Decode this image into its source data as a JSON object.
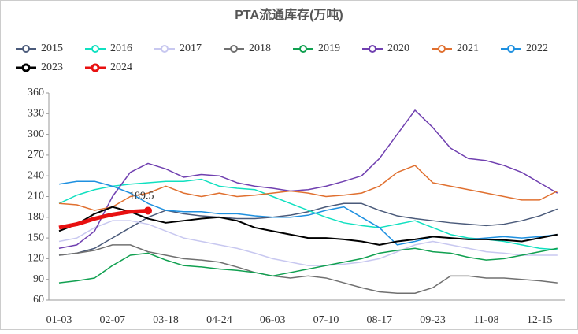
{
  "chart_data": {
    "type": "line",
    "title": "PTA流通库存(万吨)",
    "categories": [
      "01-03",
      null,
      null,
      "02-07",
      null,
      null,
      "03-18",
      null,
      null,
      "04-24",
      null,
      null,
      "06-03",
      null,
      null,
      "07-10",
      null,
      null,
      "08-17",
      null,
      null,
      "09-23",
      null,
      null,
      "11-08",
      null,
      null,
      "12-15",
      null
    ],
    "ylim": [
      60,
      360
    ],
    "yticks": [
      60,
      90,
      120,
      150,
      180,
      210,
      240,
      270,
      300,
      330,
      360
    ],
    "grid": false,
    "series": [
      {
        "name": "2015",
        "color": "#4a5a7a",
        "values": [
          125,
          128,
          135,
          150,
          165,
          180,
          190,
          185,
          182,
          180,
          178,
          178,
          180,
          183,
          188,
          195,
          200,
          200,
          190,
          182,
          178,
          175,
          172,
          170,
          168,
          170,
          175,
          182,
          192
        ]
      },
      {
        "name": "2016",
        "color": "#10e0c0",
        "values": [
          200,
          212,
          220,
          225,
          228,
          230,
          232,
          232,
          235,
          225,
          222,
          220,
          210,
          200,
          190,
          180,
          172,
          168,
          165,
          170,
          175,
          165,
          155,
          150,
          148,
          145,
          140,
          135,
          133
        ]
      },
      {
        "name": "2017",
        "color": "#c8c8f0",
        "values": [
          145,
          150,
          165,
          175,
          175,
          170,
          160,
          150,
          145,
          140,
          135,
          128,
          120,
          115,
          110,
          110,
          112,
          115,
          120,
          130,
          140,
          145,
          140,
          135,
          130,
          128,
          125,
          125,
          125
        ]
      },
      {
        "name": "2018",
        "color": "#707070",
        "values": [
          125,
          128,
          132,
          140,
          140,
          130,
          125,
          120,
          118,
          115,
          108,
          100,
          95,
          92,
          95,
          92,
          85,
          78,
          72,
          70,
          70,
          78,
          95,
          95,
          92,
          92,
          90,
          88,
          85
        ]
      },
      {
        "name": "2019",
        "color": "#10a050",
        "values": [
          85,
          88,
          92,
          110,
          125,
          128,
          118,
          110,
          108,
          105,
          103,
          100,
          95,
          100,
          105,
          110,
          115,
          120,
          128,
          132,
          135,
          130,
          128,
          122,
          118,
          120,
          125,
          130,
          135
        ]
      },
      {
        "name": "2020",
        "color": "#7040b0",
        "values": [
          135,
          140,
          160,
          210,
          245,
          258,
          250,
          238,
          242,
          240,
          230,
          225,
          222,
          218,
          220,
          225,
          232,
          240,
          265,
          300,
          335,
          310,
          280,
          265,
          262,
          255,
          245,
          230,
          215
        ]
      },
      {
        "name": "2021",
        "color": "#e07030",
        "values": [
          200,
          198,
          190,
          195,
          210,
          215,
          225,
          215,
          210,
          215,
          210,
          212,
          215,
          218,
          215,
          210,
          212,
          215,
          225,
          245,
          255,
          230,
          225,
          220,
          215,
          210,
          205,
          205,
          218
        ]
      },
      {
        "name": "2022",
        "color": "#1e90e0",
        "values": [
          228,
          232,
          232,
          225,
          215,
          200,
          190,
          188,
          188,
          185,
          185,
          182,
          180,
          180,
          183,
          190,
          195,
          180,
          165,
          140,
          145,
          152,
          150,
          148,
          150,
          152,
          150,
          152,
          155
        ]
      },
      {
        "name": "2023",
        "color": "#000000",
        "values": [
          160,
          170,
          185,
          195,
          188,
          178,
          172,
          175,
          178,
          180,
          175,
          165,
          160,
          155,
          150,
          150,
          148,
          145,
          140,
          145,
          148,
          152,
          150,
          148,
          148,
          147,
          145,
          150,
          155
        ]
      },
      {
        "name": "2024",
        "color": "#e81010",
        "values": [
          165,
          170,
          178,
          184,
          188,
          189.5,
          null,
          null,
          null,
          null,
          null,
          null,
          null,
          null,
          null,
          null,
          null,
          null,
          null,
          null,
          null,
          null,
          null,
          null,
          null,
          null,
          null,
          null,
          null
        ]
      }
    ]
  }
}
